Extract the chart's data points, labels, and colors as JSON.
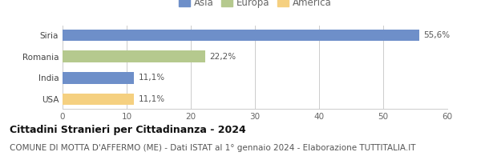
{
  "categories": [
    "Siria",
    "Romania",
    "India",
    "USA"
  ],
  "values": [
    55.6,
    22.2,
    11.1,
    11.1
  ],
  "labels": [
    "55,6%",
    "22,2%",
    "11,1%",
    "11,1%"
  ],
  "colors": [
    "#6e8fc9",
    "#b5c98e",
    "#6e8fc9",
    "#f5d080"
  ],
  "legend": [
    {
      "label": "Asia",
      "color": "#6e8fc9"
    },
    {
      "label": "Europa",
      "color": "#b5c98e"
    },
    {
      "label": "America",
      "color": "#f5d080"
    }
  ],
  "xlim": [
    0,
    60
  ],
  "xticks": [
    0,
    10,
    20,
    30,
    40,
    50,
    60
  ],
  "title": "Cittadini Stranieri per Cittadinanza - 2024",
  "subtitle": "COMUNE DI MOTTA D'AFFERMO (ME) - Dati ISTAT al 1° gennaio 2024 - Elaborazione TUTTITALIA.IT",
  "title_fontsize": 9,
  "subtitle_fontsize": 7.5,
  "bar_height": 0.55,
  "background_color": "#ffffff",
  "grid_color": "#cccccc",
  "label_fontsize": 7.5,
  "tick_fontsize": 7.5,
  "legend_fontsize": 8.5
}
